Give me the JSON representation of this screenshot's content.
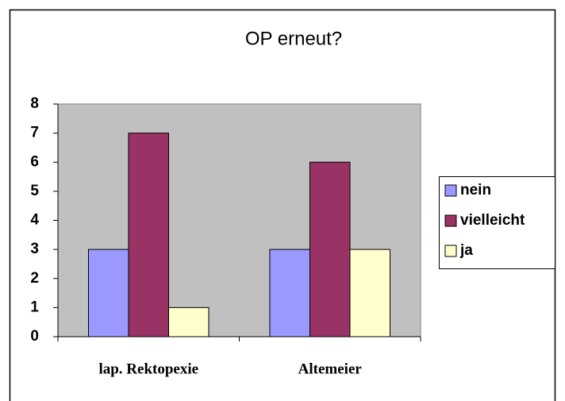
{
  "chart_data": {
    "type": "bar",
    "title": "OP erneut?",
    "categories": [
      "lap. Rektopexie",
      "Altemeier"
    ],
    "series": [
      {
        "name": "nein",
        "color": "#9999ff",
        "values": [
          3,
          3
        ]
      },
      {
        "name": "vielleicht",
        "color": "#993366",
        "values": [
          7,
          6
        ]
      },
      {
        "name": "ja",
        "color": "#ffffcc",
        "values": [
          1,
          3
        ]
      }
    ],
    "ylim": [
      0,
      8
    ],
    "yticks": [
      0,
      1,
      2,
      3,
      4,
      5,
      6,
      7,
      8
    ],
    "legend": "right",
    "plot_background": "#c0c0c0"
  }
}
